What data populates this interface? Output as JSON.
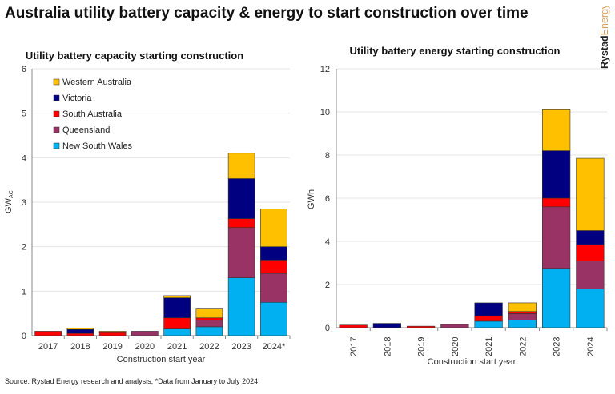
{
  "title": "Australia utility battery capacity & energy to start construction over time",
  "logo": {
    "part1": "Rystad",
    "part2": "Energy"
  },
  "source": "Source: Rystad Energy research and analysis, *Data from January to July 2024",
  "colors": {
    "Western Australia": "#FFC000",
    "Victoria": "#000080",
    "South Australia": "#FF0000",
    "Queensland": "#993366",
    "New South Wales": "#00B0F0"
  },
  "chart_data": [
    {
      "type": "bar",
      "stacked": true,
      "title": "Utility battery capacity starting construction",
      "xlabel": "Construction start year",
      "ylabel": "GW",
      "ylabel_sub": "AC",
      "ylim": [
        0,
        6
      ],
      "yticks": [
        0,
        1,
        2,
        3,
        4,
        5,
        6
      ],
      "grid": true,
      "legend": "top-left",
      "categories": [
        "2017",
        "2018",
        "2019",
        "2020",
        "2021",
        "2022",
        "2023",
        "2024*"
      ],
      "series": [
        {
          "name": "New South Wales",
          "values": [
            0,
            0,
            0,
            0,
            0.15,
            0.2,
            1.3,
            0.75
          ]
        },
        {
          "name": "Queensland",
          "values": [
            0,
            0,
            0,
            0.1,
            0,
            0.15,
            1.13,
            0.65
          ]
        },
        {
          "name": "South Australia",
          "values": [
            0.1,
            0.05,
            0.07,
            0,
            0.25,
            0.05,
            0.2,
            0.3
          ]
        },
        {
          "name": "Victoria",
          "values": [
            0,
            0.09,
            0,
            0,
            0.45,
            0,
            0.9,
            0.3
          ]
        },
        {
          "name": "Western Australia",
          "values": [
            0,
            0.03,
            0.03,
            0,
            0.05,
            0.2,
            0.57,
            0.85
          ]
        }
      ]
    },
    {
      "type": "bar",
      "stacked": true,
      "title": "Utility battery energy starting construction",
      "xlabel": "Construction start year",
      "ylabel": "GWh",
      "ylim": [
        0,
        12
      ],
      "yticks": [
        0,
        2,
        4,
        6,
        8,
        10,
        12
      ],
      "grid": true,
      "categories": [
        "2017",
        "2018",
        "2019",
        "2020",
        "2021",
        "2022",
        "2023",
        "2024"
      ],
      "series": [
        {
          "name": "New South Wales",
          "values": [
            0,
            0,
            0,
            0,
            0.3,
            0.35,
            2.75,
            1.8
          ]
        },
        {
          "name": "Queensland",
          "values": [
            0,
            0,
            0,
            0.15,
            0,
            0.3,
            2.85,
            1.3
          ]
        },
        {
          "name": "South Australia",
          "values": [
            0.12,
            0,
            0.07,
            0,
            0.25,
            0.1,
            0.4,
            0.75
          ]
        },
        {
          "name": "Victoria",
          "values": [
            0,
            0.2,
            0,
            0,
            0.6,
            0,
            2.2,
            0.65
          ]
        },
        {
          "name": "Western Australia",
          "values": [
            0,
            0,
            0,
            0,
            0,
            0.4,
            1.9,
            3.35
          ]
        }
      ]
    }
  ]
}
